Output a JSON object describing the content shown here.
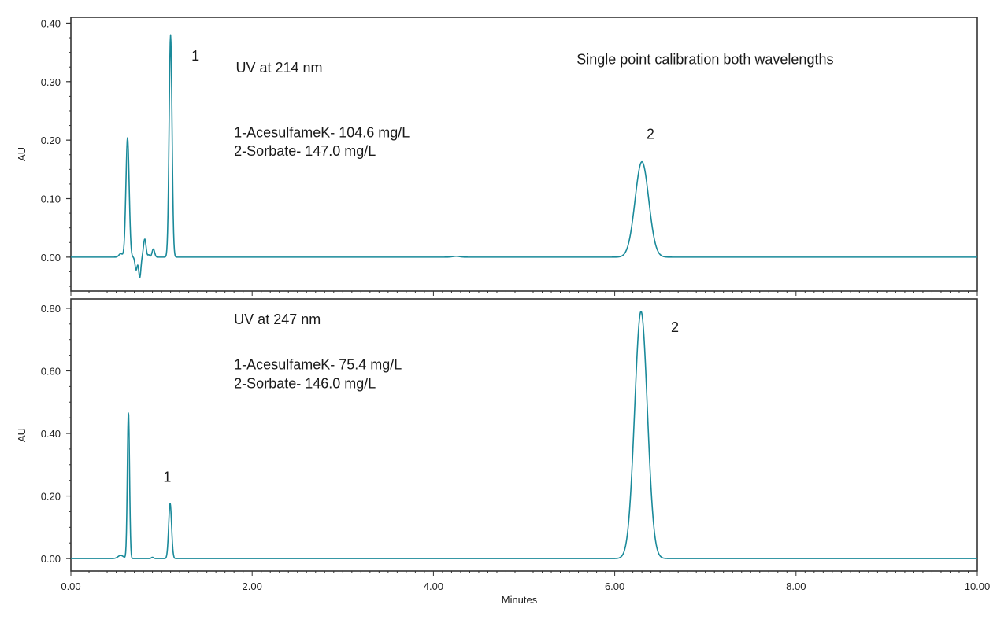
{
  "chart_data": [
    {
      "type": "line",
      "panel": "top",
      "xlabel": "",
      "ylabel": "AU",
      "xlim": [
        0,
        10
      ],
      "ylim": [
        -0.058,
        0.41
      ],
      "x_ticks": [
        "0.00",
        "2.00",
        "4.00",
        "6.00",
        "8.00",
        "10.00"
      ],
      "y_ticks": [
        {
          "value": 0.0,
          "label": "0.00"
        },
        {
          "value": 0.1,
          "label": "0.10"
        },
        {
          "value": 0.2,
          "label": "0.20"
        },
        {
          "value": 0.3,
          "label": "0.30"
        },
        {
          "value": 0.4,
          "label": "0.40"
        }
      ],
      "grid": false,
      "annotations": [
        {
          "text": "UV at 214 nm",
          "x": 1.82,
          "y": 0.316
        },
        {
          "text": "1-AcesulfameK- 104.6 mg/L",
          "x": 1.8,
          "y": 0.205
        },
        {
          "text": "2-Sorbate- 147.0 mg/L",
          "x": 1.8,
          "y": 0.173
        },
        {
          "text": "Single point calibration both wavelengths",
          "x": 5.58,
          "y": 0.33
        },
        {
          "text": "1",
          "x": 1.33,
          "y": 0.336
        },
        {
          "text": "2",
          "x": 6.35,
          "y": 0.202
        }
      ],
      "series": [
        {
          "color": "#1a8a9a",
          "peaks": [
            {
              "rt": 0.55,
              "height": 0.006,
              "width": 0.02
            },
            {
              "rt": 0.625,
              "height": 0.204,
              "width": 0.018
            },
            {
              "rt": 0.72,
              "height": -0.022,
              "width": 0.012
            },
            {
              "rt": 0.76,
              "height": -0.035,
              "width": 0.012
            },
            {
              "rt": 0.815,
              "height": 0.031,
              "width": 0.014
            },
            {
              "rt": 0.86,
              "height": 0.004,
              "width": 0.01
            },
            {
              "rt": 0.91,
              "height": 0.014,
              "width": 0.014
            },
            {
              "rt": 1.1,
              "height": 0.38,
              "width": 0.016
            },
            {
              "rt": 4.25,
              "height": 0.0015,
              "width": 0.04
            },
            {
              "rt": 6.3,
              "height": 0.163,
              "width": 0.075
            }
          ]
        }
      ]
    },
    {
      "type": "line",
      "panel": "bottom",
      "xlabel": "Minutes",
      "ylabel": "AU",
      "xlim": [
        0,
        10
      ],
      "ylim": [
        -0.04,
        0.83
      ],
      "x_ticks": [
        "0.00",
        "2.00",
        "4.00",
        "6.00",
        "8.00",
        "10.00"
      ],
      "y_ticks": [
        {
          "value": 0.0,
          "label": "0.00"
        },
        {
          "value": 0.2,
          "label": "0.20"
        },
        {
          "value": 0.4,
          "label": "0.40"
        },
        {
          "value": 0.6,
          "label": "0.60"
        },
        {
          "value": 0.8,
          "label": "0.80"
        }
      ],
      "grid": false,
      "annotations": [
        {
          "text": "UV at 247 nm",
          "x": 1.8,
          "y": 0.75
        },
        {
          "text": "1-AcesulfameK- 75.4 mg/L",
          "x": 1.8,
          "y": 0.605
        },
        {
          "text": "2-Sorbate- 146.0 mg/L",
          "x": 1.8,
          "y": 0.545
        },
        {
          "text": "1",
          "x": 1.02,
          "y": 0.245
        },
        {
          "text": "2",
          "x": 6.62,
          "y": 0.725
        }
      ],
      "series": [
        {
          "color": "#1a8a9a",
          "peaks": [
            {
              "rt": 0.55,
              "height": 0.01,
              "width": 0.03
            },
            {
              "rt": 0.635,
              "height": 0.47,
              "width": 0.012
            },
            {
              "rt": 0.9,
              "height": 0.004,
              "width": 0.012
            },
            {
              "rt": 1.095,
              "height": 0.177,
              "width": 0.016
            },
            {
              "rt": 6.29,
              "height": 0.79,
              "width": 0.07
            }
          ]
        }
      ]
    }
  ]
}
